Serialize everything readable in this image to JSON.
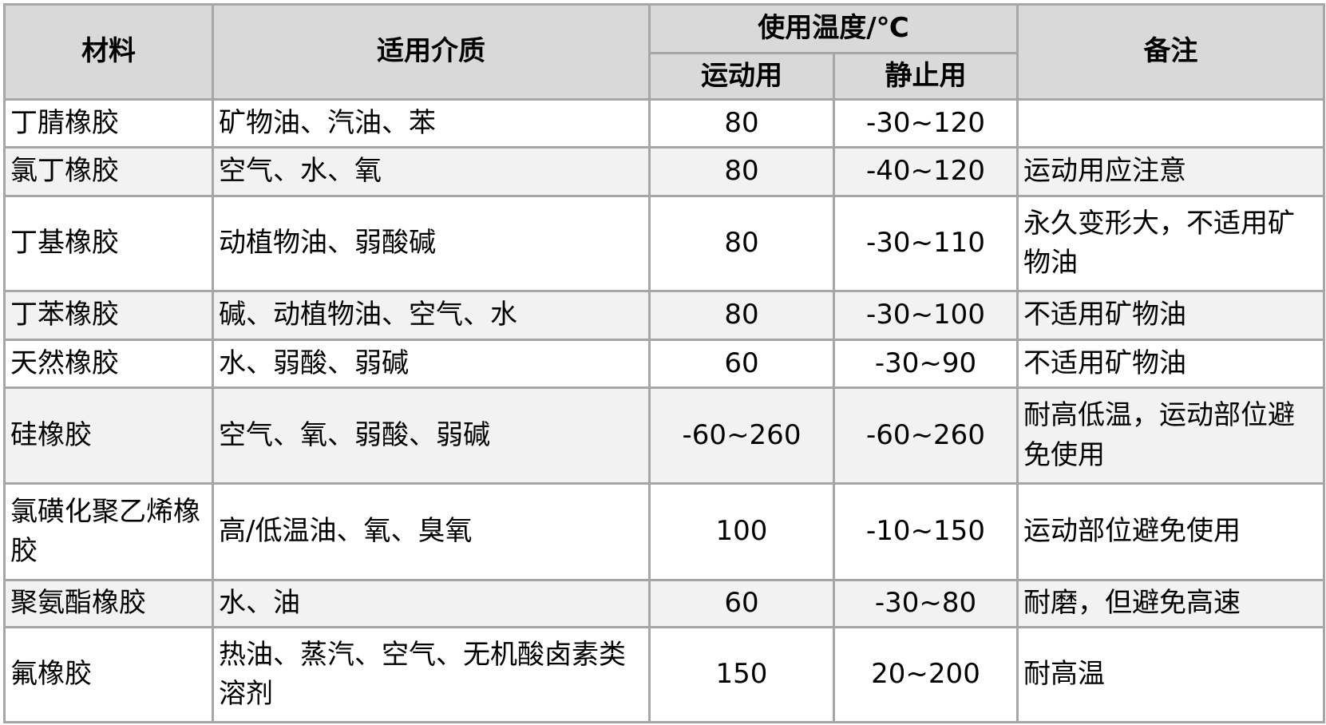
{
  "header": {
    "material": "材料",
    "medium": "适用介质",
    "temp": "使用温度/℃",
    "dynamic": "运动用",
    "static": "静止用",
    "note": "备注"
  },
  "rows": [
    {
      "material": "丁腈橡胶",
      "medium": "矿物油、汽油、苯",
      "dynamic": "80",
      "static": "-30~120",
      "note": ""
    },
    {
      "material": "氯丁橡胶",
      "medium": "空气、水、氧",
      "dynamic": "80",
      "static": "-40~120",
      "note": "运动用应注意"
    },
    {
      "material": "丁基橡胶",
      "medium": "动植物油、弱酸碱",
      "dynamic": "80",
      "static": "-30~110",
      "note": "永久变形大，不适用矿物油"
    },
    {
      "material": "丁苯橡胶",
      "medium": "碱、动植物油、空气、水",
      "dynamic": "80",
      "static": "-30~100",
      "note": "不适用矿物油"
    },
    {
      "material": "天然橡胶",
      "medium": "水、弱酸、弱碱",
      "dynamic": "60",
      "static": "-30~90",
      "note": "不适用矿物油"
    },
    {
      "material": "硅橡胶",
      "medium": "空气、氧、弱酸、弱碱",
      "dynamic": "-60~260",
      "static": "-60~260",
      "note": "耐高低温，运动部位避免使用"
    },
    {
      "material": "氯磺化聚乙烯橡胶",
      "medium": "高/低温油、氧、臭氧",
      "dynamic": "100",
      "static": "-10~150",
      "note": "运动部位避免使用"
    },
    {
      "material": "聚氨酯橡胶",
      "medium": "水、油",
      "dynamic": "60",
      "static": "-30~80",
      "note": "耐磨，但避免高速"
    },
    {
      "material": "氟橡胶",
      "medium": "热油、蒸汽、空气、无机酸卤素类溶剂",
      "dynamic": "150",
      "static": "20~200",
      "note": "耐高温"
    }
  ]
}
